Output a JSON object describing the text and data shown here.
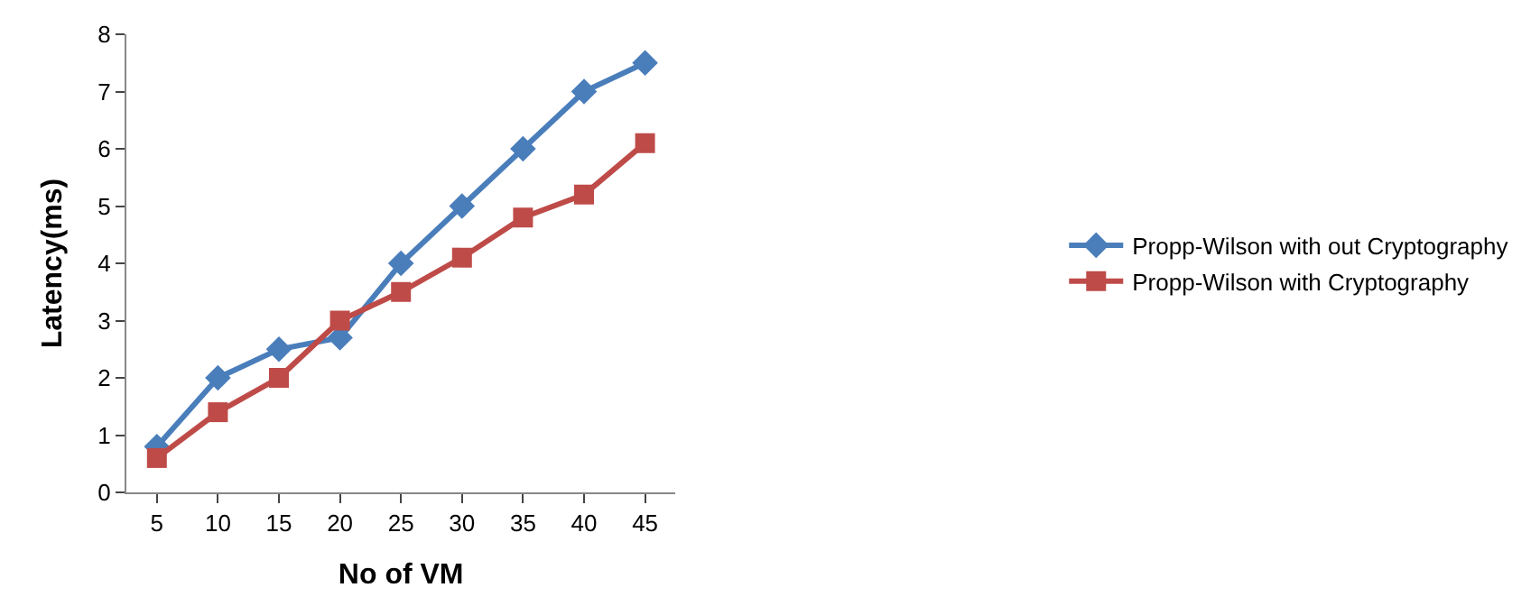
{
  "chart_data": {
    "type": "line",
    "xlabel": "No of VM",
    "ylabel": "Latency(ms)",
    "categories": [
      "5",
      "10",
      "15",
      "20",
      "25",
      "30",
      "35",
      "40",
      "45"
    ],
    "ylim": [
      0,
      8
    ],
    "yticks": [
      0,
      1,
      2,
      3,
      4,
      5,
      6,
      7,
      8
    ],
    "legend": "right",
    "series": [
      {
        "name": "Propp-Wilson with out Cryptography",
        "color": "#4a7ebb",
        "marker": "diamond",
        "values": [
          0.8,
          2.0,
          2.5,
          2.7,
          4.0,
          5.0,
          6.0,
          7.0,
          7.5
        ]
      },
      {
        "name": "Propp-Wilson with Cryptography",
        "color": "#be4b48",
        "marker": "square",
        "values": [
          0.6,
          1.4,
          2.0,
          3.0,
          3.5,
          4.1,
          4.8,
          5.2,
          6.1
        ]
      }
    ]
  }
}
